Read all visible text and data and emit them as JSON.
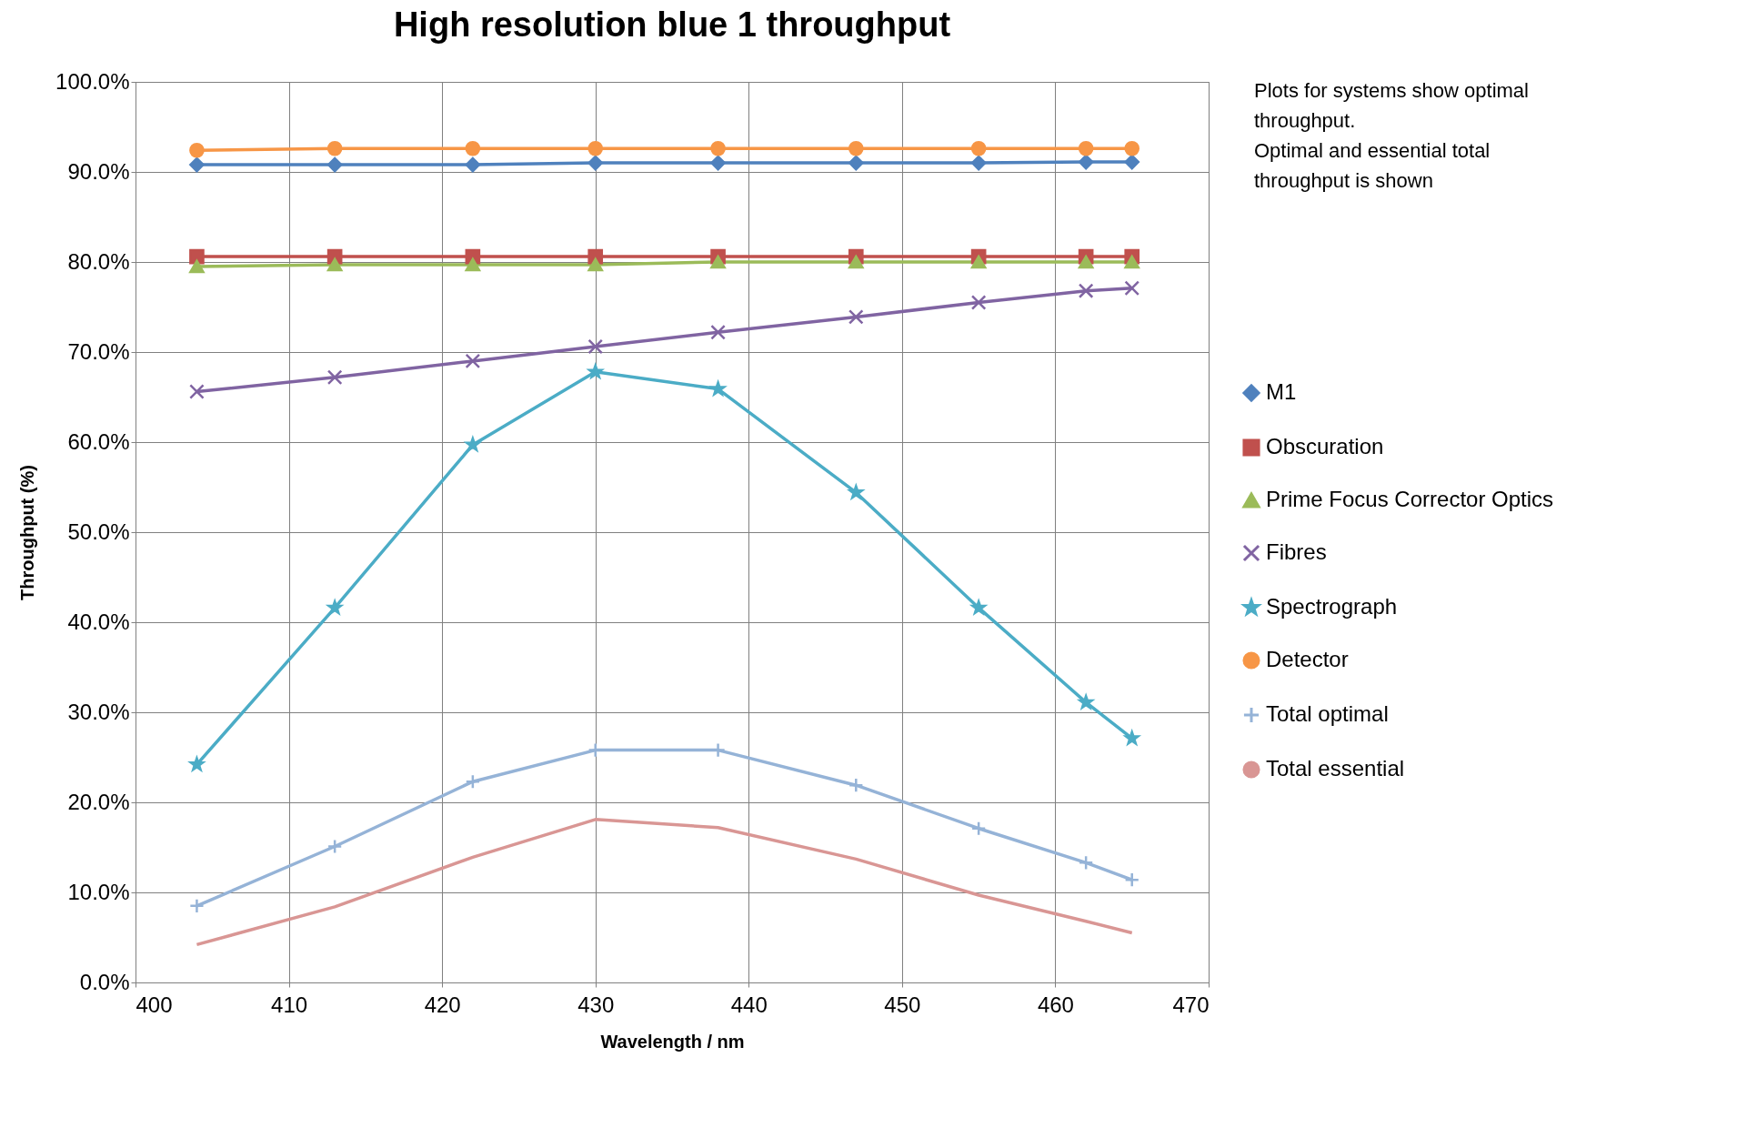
{
  "chart_data": {
    "type": "line",
    "title": "High resolution blue 1 throughput",
    "xlabel": "Wavelength / nm",
    "ylabel": "Throughput  (%)",
    "x": [
      404,
      413,
      422,
      430,
      438,
      447,
      455,
      462,
      465
    ],
    "series": [
      {
        "name": "M1",
        "color": "#4f81bd",
        "marker": "diamond",
        "values": [
          90.8,
          90.8,
          90.8,
          91.0,
          91.0,
          91.0,
          91.0,
          91.1,
          91.1
        ]
      },
      {
        "name": "Obscuration",
        "color": "#c0504d",
        "marker": "square",
        "values": [
          80.6,
          80.6,
          80.6,
          80.6,
          80.6,
          80.6,
          80.6,
          80.6,
          80.6
        ]
      },
      {
        "name": "Prime Focus Corrector  Optics",
        "color": "#9bbb59",
        "marker": "triangle",
        "values": [
          79.5,
          79.7,
          79.7,
          79.7,
          80.0,
          80.0,
          80.0,
          80.0,
          80.0
        ]
      },
      {
        "name": "Fibres",
        "color": "#8064a2",
        "marker": "cross",
        "values": [
          65.6,
          67.2,
          69.0,
          70.6,
          72.2,
          73.9,
          75.5,
          76.8,
          77.1
        ]
      },
      {
        "name": "Spectrograph",
        "color": "#4bacc6",
        "marker": "star",
        "values": [
          24.2,
          41.6,
          59.7,
          67.8,
          65.9,
          54.4,
          41.6,
          31.1,
          27.1
        ]
      },
      {
        "name": "Detector",
        "color": "#f79646",
        "marker": "circle",
        "values": [
          92.4,
          92.6,
          92.6,
          92.6,
          92.6,
          92.6,
          92.6,
          92.6,
          92.6
        ]
      },
      {
        "name": "Total optimal",
        "color": "#95b3d7",
        "marker": "plus",
        "values": [
          8.5,
          15.1,
          22.3,
          25.8,
          25.8,
          21.9,
          17.1,
          13.3,
          11.4
        ]
      },
      {
        "name": "Total essential",
        "color": "#d99694",
        "marker": "none",
        "values": [
          4.2,
          8.4,
          13.9,
          18.1,
          17.2,
          13.7,
          9.7,
          6.8,
          5.5
        ]
      }
    ],
    "xlim": [
      400,
      470
    ],
    "xticks": [
      400,
      410,
      420,
      430,
      440,
      450,
      460,
      470
    ],
    "ylim": [
      0,
      100
    ],
    "yticks": [
      {
        "value": 0,
        "label": "0.0%"
      },
      {
        "value": 10,
        "label": "10.0%"
      },
      {
        "value": 20,
        "label": "20.0%"
      },
      {
        "value": 30,
        "label": "30.0%"
      },
      {
        "value": 40,
        "label": "40.0%"
      },
      {
        "value": 50,
        "label": "50.0%"
      },
      {
        "value": 60,
        "label": "60.0%"
      },
      {
        "value": 70,
        "label": "70.0%"
      },
      {
        "value": 80,
        "label": "80.0%"
      },
      {
        "value": 90,
        "label": "90.0%"
      },
      {
        "value": 100,
        "label": "100.0%"
      }
    ],
    "annotations": [
      "Plots for systems show optimal throughput.",
      "Optimal and essential total throughput is shown"
    ],
    "grid": true,
    "legend": "right",
    "line_style": "solid"
  }
}
